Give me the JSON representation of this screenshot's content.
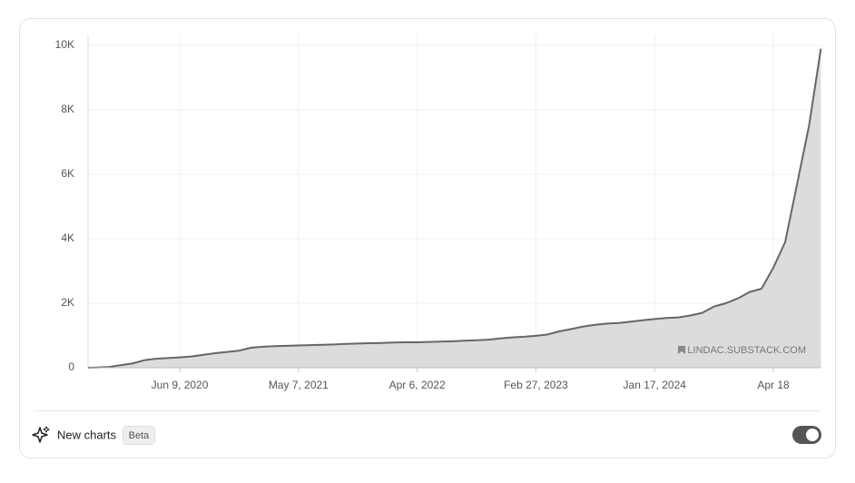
{
  "chart_data": {
    "type": "area",
    "categories": [
      null,
      null,
      null,
      null,
      null,
      null,
      null,
      null,
      "Jun 9, 2020",
      null,
      null,
      null,
      null,
      null,
      null,
      null,
      null,
      null,
      "May 7, 2021",
      null,
      null,
      null,
      null,
      null,
      null,
      null,
      null,
      null,
      "Apr 6, 2022",
      null,
      null,
      null,
      null,
      null,
      null,
      null,
      null,
      null,
      "Feb 27, 2023",
      null,
      null,
      null,
      null,
      null,
      null,
      null,
      null,
      null,
      "Jan 17, 2024",
      null,
      null,
      null,
      null,
      null,
      null,
      null,
      null,
      null,
      "Apr 18",
      null,
      null,
      null,
      null
    ],
    "values": [
      0,
      5,
      20,
      80,
      130,
      230,
      280,
      300,
      320,
      350,
      400,
      450,
      490,
      530,
      620,
      650,
      670,
      680,
      690,
      700,
      710,
      720,
      740,
      750,
      760,
      770,
      780,
      790,
      790,
      800,
      810,
      820,
      840,
      850,
      870,
      910,
      940,
      960,
      990,
      1030,
      1130,
      1200,
      1280,
      1330,
      1370,
      1390,
      1430,
      1470,
      1510,
      1540,
      1560,
      1620,
      1700,
      1900,
      2000,
      2150,
      2350,
      2450,
      3100,
      3900,
      5700,
      7500,
      9900
    ],
    "color": "#666666",
    "fill": "#dcdcdc",
    "ylim": [
      0,
      10000
    ],
    "yticks": [
      0,
      {
        "value": 2000,
        "label": "2K"
      },
      {
        "value": 4000,
        "label": "4K"
      },
      {
        "value": 6000,
        "label": "6K"
      },
      {
        "value": 8000,
        "label": "8K"
      },
      {
        "value": 10000,
        "label": "10K"
      }
    ],
    "grid": true,
    "watermark": "LINDAC.SUBSTACK.COM"
  },
  "footer": {
    "label": "New charts",
    "badge": "Beta",
    "toggle": true
  }
}
